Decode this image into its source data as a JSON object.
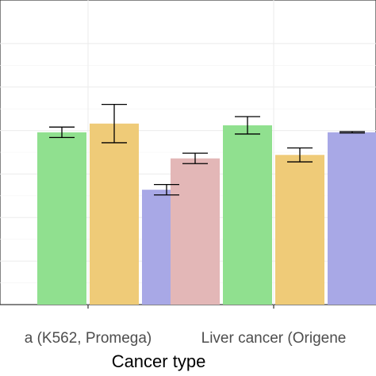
{
  "chart_data": {
    "type": "bar",
    "xlabel": "Cancer type",
    "ylabel": "",
    "categories": [
      "a (K562, Promega)",
      "Liver cancer (Origene"
    ],
    "ylim": [
      0,
      1.75
    ],
    "grid": true,
    "legend": "none",
    "series": [
      {
        "color": "#e3b7b7",
        "values": [
          null,
          0.84
        ],
        "errors": [
          null,
          0.03
        ]
      },
      {
        "color": "#90e08f",
        "values": [
          0.99,
          1.03
        ],
        "errors": [
          0.03,
          0.05
        ]
      },
      {
        "color": "#efcb78",
        "values": [
          1.04,
          0.86
        ],
        "errors": [
          0.11,
          0.04
        ]
      },
      {
        "color": "#a8a8e6",
        "values": [
          0.66,
          0.99
        ],
        "errors": [
          0.03,
          0.004
        ]
      }
    ]
  }
}
